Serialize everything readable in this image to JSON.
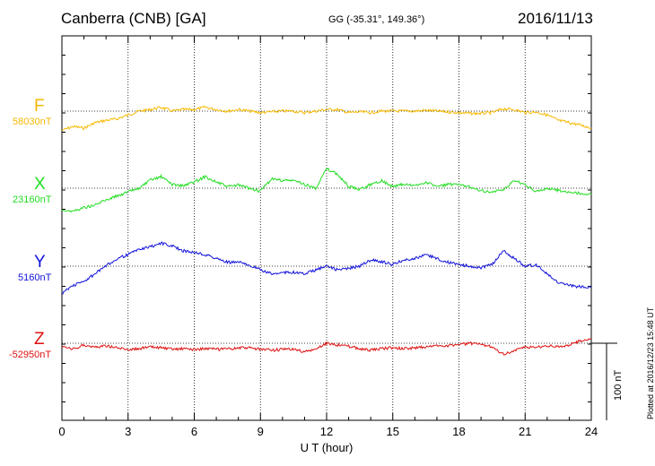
{
  "header": {
    "title": "Canberra (CNB)  [GA]",
    "coords": "GG (-35.31°, 149.36°)",
    "date": "2016/11/13"
  },
  "footer": {
    "plotted": "Plotted at 2016/12/23 15:48 UT"
  },
  "chart_data": {
    "type": "line",
    "xlabel": "U T (hour)",
    "xlim": [
      0,
      24
    ],
    "xticks": [
      "0",
      "3",
      "6",
      "9",
      "12",
      "15",
      "18",
      "21",
      "24"
    ],
    "scale_bar_label": "100 nT",
    "scale_bar_nT": 100,
    "grid": true,
    "series": [
      {
        "name": "F",
        "baseline": "58030nT",
        "color": "#f5b800",
        "x": [
          0,
          0.5,
          1,
          1.5,
          2,
          2.5,
          3,
          3.5,
          4,
          4.5,
          5,
          5.5,
          6,
          6.5,
          7,
          7.5,
          8,
          8.5,
          9,
          9.5,
          10,
          10.5,
          11,
          11.5,
          12,
          12.5,
          13,
          13.5,
          14,
          14.5,
          15,
          15.5,
          16,
          16.5,
          17,
          17.5,
          18,
          18.5,
          19,
          19.5,
          20,
          20.5,
          21,
          21.5,
          22,
          22.5,
          23,
          23.5,
          24
        ],
        "y": [
          -25,
          -20,
          -22,
          -15,
          -12,
          -10,
          -5,
          0,
          2,
          5,
          0,
          2,
          2,
          5,
          2,
          0,
          2,
          0,
          -2,
          -1,
          0,
          0,
          -2,
          0,
          2,
          2,
          -2,
          -1,
          -2,
          0,
          0,
          0,
          0,
          1,
          0,
          -1,
          -2,
          -3,
          -3,
          -2,
          3,
          2,
          -2,
          -1,
          -5,
          -12,
          -15,
          -18,
          -22
        ]
      },
      {
        "name": "X",
        "baseline": "23160nT",
        "color": "#22dd22",
        "x": [
          0,
          0.5,
          1,
          1.5,
          2,
          2.5,
          3,
          3.5,
          4,
          4.5,
          5,
          5.5,
          6,
          6.5,
          7,
          7.5,
          8,
          8.5,
          9,
          9.5,
          10,
          10.5,
          11,
          11.5,
          12,
          12.5,
          13,
          13.5,
          14,
          14.5,
          15,
          15.5,
          16,
          16.5,
          17,
          17.5,
          18,
          18.5,
          19,
          19.5,
          20,
          20.5,
          21,
          21.5,
          22,
          22.5,
          23,
          23.5,
          24
        ],
        "y": [
          -28,
          -30,
          -25,
          -22,
          -15,
          -10,
          -5,
          0,
          10,
          15,
          5,
          3,
          8,
          15,
          8,
          2,
          4,
          0,
          -4,
          12,
          10,
          10,
          5,
          0,
          25,
          18,
          2,
          -2,
          5,
          10,
          2,
          5,
          3,
          8,
          2,
          5,
          4,
          2,
          -3,
          -5,
          -3,
          10,
          5,
          -5,
          0,
          -3,
          -5,
          -7,
          -8
        ]
      },
      {
        "name": "Y",
        "baseline": "5160nT",
        "color": "#1111dd",
        "x": [
          0,
          0.5,
          1,
          1.5,
          2,
          2.5,
          3,
          3.5,
          4,
          4.5,
          5,
          5.5,
          6,
          6.5,
          7,
          7.5,
          8,
          8.5,
          9,
          9.5,
          10,
          10.5,
          11,
          11.5,
          12,
          12.5,
          13,
          13.5,
          14,
          14.5,
          15,
          15.5,
          16,
          16.5,
          17,
          17.5,
          18,
          18.5,
          19,
          19.5,
          20,
          20.5,
          21,
          21.5,
          22,
          22.5,
          23,
          23.5,
          24
        ],
        "y": [
          -35,
          -25,
          -20,
          -10,
          0,
          10,
          15,
          22,
          25,
          30,
          26,
          20,
          18,
          15,
          10,
          5,
          5,
          2,
          -5,
          -10,
          -8,
          -8,
          -10,
          -5,
          0,
          -5,
          -3,
          0,
          8,
          6,
          2,
          8,
          10,
          15,
          10,
          5,
          2,
          0,
          -2,
          2,
          20,
          10,
          0,
          2,
          -10,
          -22,
          -25,
          -27,
          -28
        ]
      },
      {
        "name": "Z",
        "baseline": "-52950nT",
        "color": "#dd1111",
        "x": [
          0,
          0.5,
          1,
          1.5,
          2,
          2.5,
          3,
          3.5,
          4,
          4.5,
          5,
          5.5,
          6,
          6.5,
          7,
          7.5,
          8,
          8.5,
          9,
          9.5,
          10,
          10.5,
          11,
          11.5,
          12,
          12.5,
          13,
          13.5,
          14,
          14.5,
          15,
          15.5,
          16,
          16.5,
          17,
          17.5,
          18,
          18.5,
          19,
          19.5,
          20,
          20.5,
          21,
          21.5,
          22,
          22.5,
          23,
          23.5,
          24
        ],
        "y": [
          -5,
          -8,
          -2,
          -5,
          -3,
          -6,
          -8,
          -7,
          -5,
          -6,
          -8,
          -7,
          -8,
          -7,
          -8,
          -8,
          -6,
          -6,
          -8,
          -9,
          -8,
          -8,
          -11,
          -8,
          0,
          -2,
          -4,
          -7,
          -9,
          -7,
          -6,
          -7,
          -6,
          -5,
          -3,
          -3,
          -2,
          0,
          -2,
          -4,
          -14,
          -10,
          -5,
          -5,
          -3,
          -5,
          -2,
          3,
          6
        ]
      }
    ]
  }
}
